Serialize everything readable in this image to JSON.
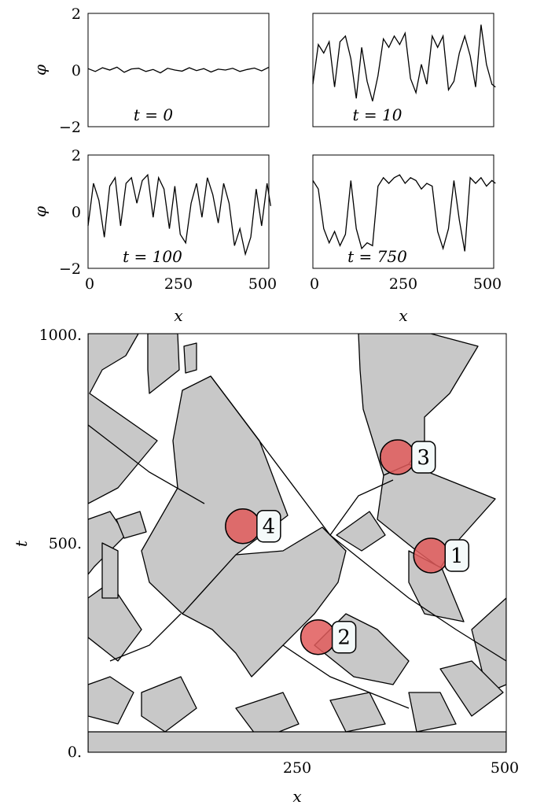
{
  "chart_data": [
    {
      "type": "line",
      "panel": "top-left",
      "annotation": "t = 0",
      "xlim": [
        0,
        500
      ],
      "ylim": [
        -2,
        2
      ],
      "yticks": [
        "2",
        "0",
        "−2"
      ],
      "ylabel": "φ",
      "x": [
        0,
        20,
        40,
        60,
        80,
        100,
        120,
        140,
        160,
        180,
        200,
        220,
        240,
        260,
        280,
        300,
        320,
        340,
        360,
        380,
        400,
        420,
        440,
        460,
        480,
        500
      ],
      "values": [
        0.05,
        -0.05,
        0.08,
        0.0,
        0.1,
        -0.08,
        0.04,
        0.06,
        -0.05,
        0.02,
        -0.1,
        0.06,
        0.0,
        -0.04,
        0.08,
        -0.02,
        0.05,
        -0.07,
        0.03,
        0.0,
        0.06,
        -0.05,
        0.02,
        0.07,
        -0.03,
        0.1
      ]
    },
    {
      "type": "line",
      "panel": "top-right",
      "annotation": "t = 10",
      "xlim": [
        0,
        500
      ],
      "ylim": [
        -2,
        2
      ],
      "x": [
        0,
        15,
        30,
        45,
        60,
        75,
        90,
        105,
        120,
        135,
        150,
        165,
        180,
        195,
        210,
        225,
        240,
        255,
        270,
        285,
        300,
        315,
        330,
        345,
        360,
        375,
        390,
        405,
        420,
        435,
        450,
        465,
        480,
        495,
        505
      ],
      "values": [
        -0.5,
        0.9,
        0.6,
        1.0,
        -0.6,
        1.0,
        1.2,
        0.4,
        -1.0,
        0.8,
        -0.4,
        -1.1,
        -0.2,
        1.1,
        0.8,
        1.2,
        0.9,
        1.3,
        -0.3,
        -0.8,
        0.2,
        -0.5,
        1.2,
        0.8,
        1.2,
        -0.7,
        -0.4,
        0.6,
        1.2,
        0.5,
        -0.6,
        1.6,
        0.2,
        -0.5,
        -0.6
      ]
    },
    {
      "type": "line",
      "panel": "bottom-left",
      "annotation": "t = 100",
      "xlim": [
        0,
        500
      ],
      "ylim": [
        -2,
        2
      ],
      "yticks": [
        "2",
        "0",
        "−2"
      ],
      "ylabel": "φ",
      "xticks": [
        "0",
        "250",
        "500"
      ],
      "xlabel": "x",
      "x": [
        0,
        15,
        30,
        45,
        60,
        75,
        90,
        105,
        120,
        135,
        150,
        165,
        180,
        195,
        210,
        225,
        240,
        255,
        270,
        285,
        300,
        315,
        330,
        345,
        360,
        375,
        390,
        405,
        420,
        435,
        450,
        465,
        480,
        495,
        505
      ],
      "values": [
        -0.5,
        1.0,
        0.4,
        -0.9,
        0.9,
        1.2,
        -0.5,
        1.0,
        1.2,
        0.3,
        1.1,
        1.3,
        -0.2,
        1.2,
        0.8,
        -0.6,
        0.9,
        -0.8,
        -1.1,
        0.3,
        1.0,
        -0.2,
        1.2,
        0.6,
        -0.4,
        1.0,
        0.3,
        -1.2,
        -0.6,
        -1.5,
        -0.9,
        0.8,
        -0.5,
        1.0,
        0.2
      ]
    },
    {
      "type": "line",
      "panel": "bottom-right",
      "annotation": "t = 750",
      "xlim": [
        0,
        500
      ],
      "ylim": [
        -2,
        2
      ],
      "xticks": [
        "0",
        "250",
        "500"
      ],
      "xlabel": "x",
      "x": [
        0,
        15,
        30,
        45,
        60,
        75,
        90,
        105,
        120,
        135,
        150,
        165,
        180,
        195,
        210,
        225,
        240,
        255,
        270,
        285,
        300,
        315,
        330,
        345,
        360,
        375,
        390,
        405,
        420,
        435,
        450,
        465,
        480,
        495,
        505
      ],
      "values": [
        1.1,
        0.8,
        -0.6,
        -1.1,
        -0.7,
        -1.2,
        -0.8,
        1.1,
        -0.6,
        -1.3,
        -1.1,
        -1.2,
        0.9,
        1.2,
        1.0,
        1.2,
        1.3,
        1.0,
        1.2,
        1.1,
        0.8,
        1.0,
        0.9,
        -0.7,
        -1.3,
        -0.6,
        1.1,
        -0.3,
        -1.4,
        1.2,
        1.0,
        1.2,
        0.9,
        1.1,
        1.0
      ]
    },
    {
      "type": "heatmap",
      "panel": "bottom-large",
      "description_shown": "space-time domain map",
      "xlim": [
        0,
        500
      ],
      "ylim": [
        0,
        1000
      ],
      "xticks": [
        "250",
        "500"
      ],
      "yticks": [
        "0.",
        "500.",
        "1000."
      ],
      "xlabel": "x",
      "ylabel": "t",
      "fill_color": "#c8c8c8",
      "edge_color": "#000000",
      "marker_color": "#e05a5a",
      "markers": [
        {
          "label": "1",
          "x": 410,
          "t": 470
        },
        {
          "label": "2",
          "x": 275,
          "t": 275
        },
        {
          "label": "3",
          "x": 370,
          "t": 705
        },
        {
          "label": "4",
          "x": 185,
          "t": 540
        }
      ]
    }
  ]
}
